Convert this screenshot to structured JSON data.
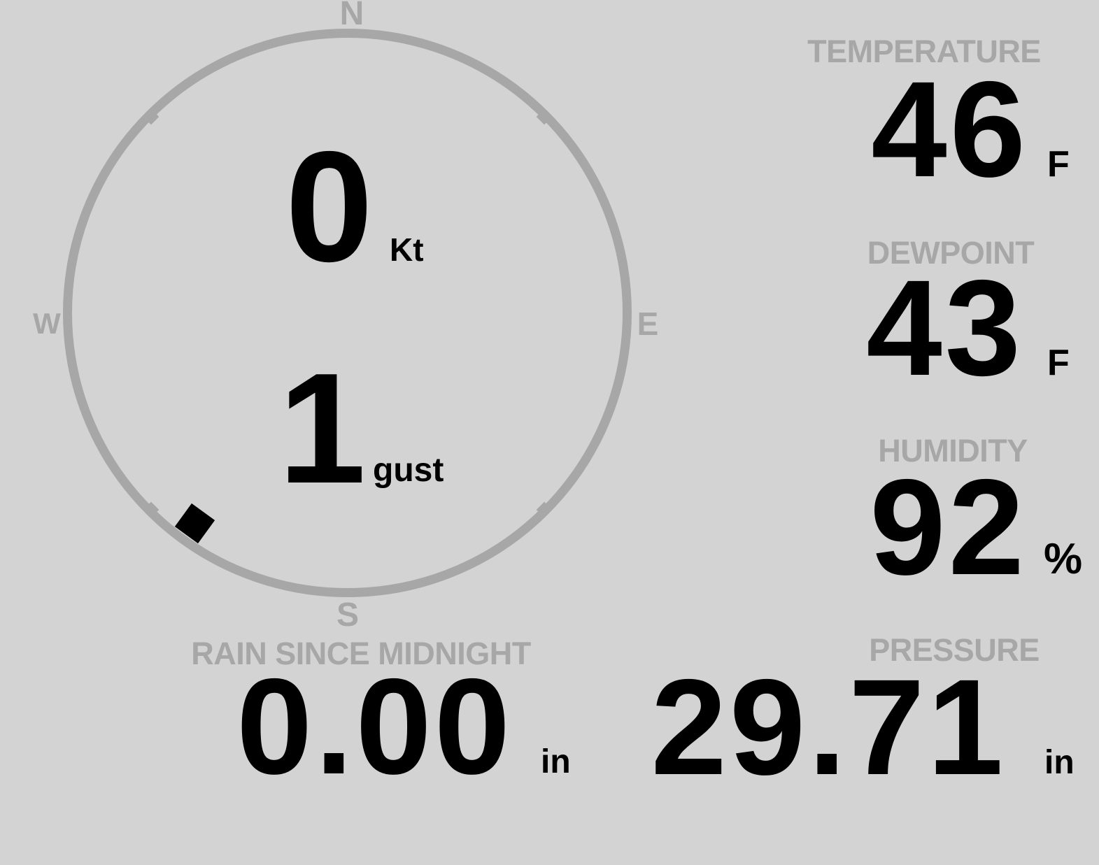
{
  "colors": {
    "background": "#d3d3d3",
    "muted_gray": "#a7a7a7",
    "foreground": "#000000"
  },
  "wind": {
    "speed_value": "0",
    "speed_unit": "Kt",
    "gust_value": "1",
    "gust_unit": "gust",
    "direction_deg": 216,
    "cardinals": {
      "north": "N",
      "east": "E",
      "south": "S",
      "west": "W"
    }
  },
  "readings": {
    "temperature": {
      "label": "TEMPERATURE",
      "value": "46",
      "unit": "F"
    },
    "dewpoint": {
      "label": "DEWPOINT",
      "value": "43",
      "unit": "F"
    },
    "humidity": {
      "label": "HUMIDITY",
      "value": "92",
      "unit": "%"
    },
    "rain": {
      "label": "RAIN SINCE MIDNIGHT",
      "value": "0.00",
      "unit": "in"
    },
    "pressure": {
      "label": "PRESSURE",
      "value": "29.71",
      "unit": "in"
    }
  }
}
